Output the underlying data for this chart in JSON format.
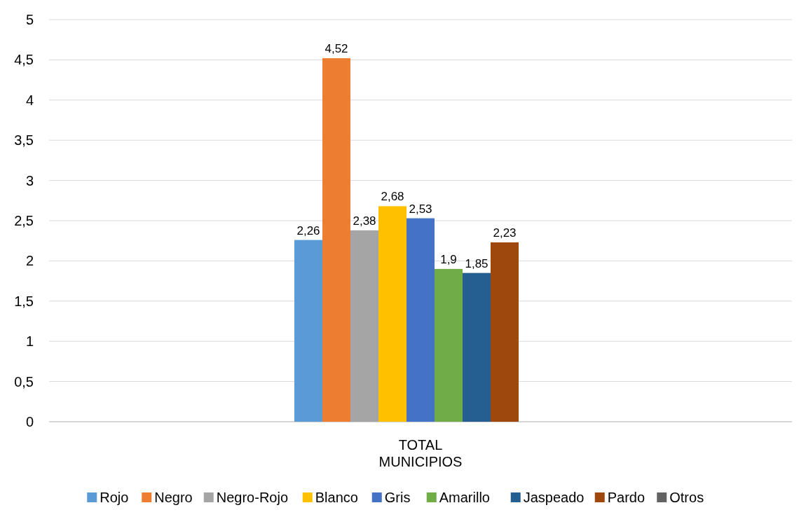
{
  "chart_data": {
    "type": "bar",
    "categories": [
      "TOTAL MUNICIPIOS"
    ],
    "series": [
      {
        "name": "Rojo",
        "color": "#5b9bd5",
        "values": [
          2.26
        ],
        "value_labels": [
          "2,26"
        ]
      },
      {
        "name": "Negro",
        "color": "#ed7d31",
        "values": [
          4.52
        ],
        "value_labels": [
          "4,52"
        ]
      },
      {
        "name": "Negro-Rojo",
        "color": "#a5a5a5",
        "values": [
          2.38
        ],
        "value_labels": [
          "2,38"
        ]
      },
      {
        "name": "Blanco",
        "color": "#ffc000",
        "values": [
          2.68
        ],
        "value_labels": [
          "2,68"
        ]
      },
      {
        "name": "Gris",
        "color": "#4472c4",
        "values": [
          2.53
        ],
        "value_labels": [
          "2,53"
        ]
      },
      {
        "name": "Amarillo",
        "color": "#70ad47",
        "values": [
          1.9
        ],
        "value_labels": [
          "1,9"
        ]
      },
      {
        "name": "Jaspeado",
        "color": "#255e91",
        "values": [
          1.85
        ],
        "value_labels": [
          "1,85"
        ]
      },
      {
        "name": "Pardo",
        "color": "#9e480e",
        "values": [
          2.23
        ],
        "value_labels": [
          "2,23"
        ]
      },
      {
        "name": "Otros",
        "color": "#636363",
        "values": [
          null
        ],
        "value_labels": [
          null
        ]
      }
    ],
    "ylim": [
      0,
      5
    ],
    "yticks": [
      0,
      {
        "value": 0.5,
        "label": "0,5"
      },
      1,
      {
        "value": 1.5,
        "label": "1,5"
      },
      2,
      {
        "value": 2.5,
        "label": "2,5"
      },
      3,
      {
        "value": 3.5,
        "label": "3,5"
      },
      4,
      {
        "value": 4.5,
        "label": "4,5"
      },
      5
    ],
    "grid": "y",
    "legend": "bottom"
  }
}
